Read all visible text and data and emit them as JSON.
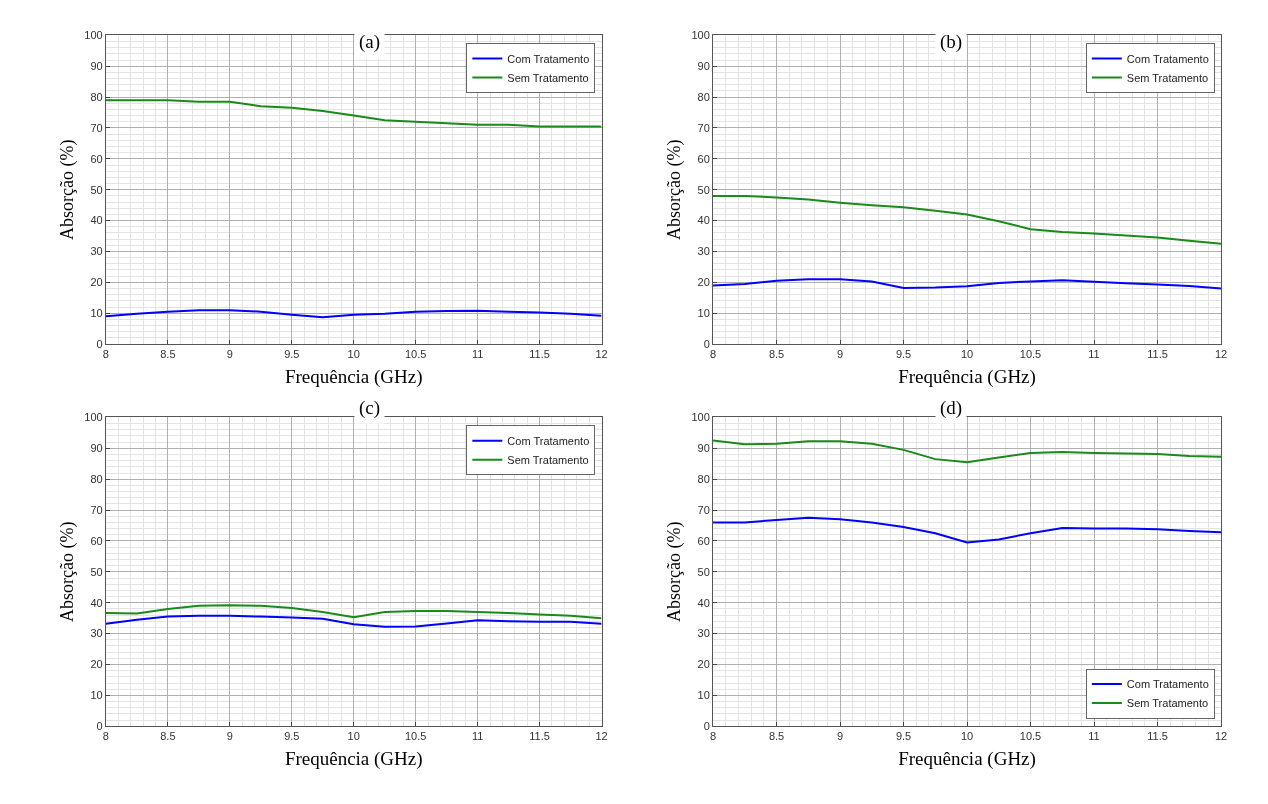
{
  "chart_data": [
    {
      "type": "line",
      "title": "(a)",
      "xlabel": "Frequência (GHz)",
      "ylabel": "Absorção (%)",
      "x": [
        8,
        8.25,
        8.5,
        8.75,
        9,
        9.25,
        9.5,
        9.75,
        10,
        10.25,
        10.5,
        10.75,
        11,
        11.25,
        11.5,
        11.75,
        12
      ],
      "series": [
        {
          "name": "Com Tratamento",
          "color": "#0000ff",
          "values": [
            9,
            9.8,
            10.5,
            11,
            11,
            10.5,
            9.5,
            8.7,
            9.5,
            9.8,
            10.5,
            10.7,
            10.8,
            10.5,
            10.2,
            9.8,
            9.2
          ]
        },
        {
          "name": "Sem Tratamento",
          "color": "#1a8a1a",
          "values": [
            79,
            79,
            79,
            78.5,
            78.5,
            77,
            76.5,
            75.5,
            74,
            72.5,
            72,
            71.5,
            71,
            71,
            70.5,
            70.5,
            70.5
          ]
        }
      ],
      "xlim": [
        8,
        12
      ],
      "ylim": [
        0,
        100
      ],
      "xticks": [
        8,
        8.5,
        9,
        9.5,
        10,
        10.5,
        11,
        11.5,
        12
      ],
      "yticks": [
        0,
        10,
        20,
        30,
        40,
        50,
        60,
        70,
        80,
        90,
        100
      ],
      "grid": true,
      "legend": "top right"
    },
    {
      "type": "line",
      "title": "(b)",
      "xlabel": "Frequência (GHz)",
      "ylabel": "Absorção (%)",
      "x": [
        8,
        8.25,
        8.5,
        8.75,
        9,
        9.25,
        9.5,
        9.75,
        10,
        10.25,
        10.5,
        10.75,
        11,
        11.25,
        11.5,
        11.75,
        12
      ],
      "series": [
        {
          "name": "Com Tratamento",
          "color": "#0000ff",
          "values": [
            19,
            19.5,
            20.5,
            21,
            21,
            20.3,
            18.2,
            18.3,
            18.7,
            19.8,
            20.3,
            20.7,
            20.2,
            19.7,
            19.3,
            18.8,
            18
          ]
        },
        {
          "name": "Sem Tratamento",
          "color": "#1a8a1a",
          "values": [
            48,
            48,
            47.5,
            46.8,
            45.8,
            45,
            44.3,
            43.2,
            42,
            39.8,
            37.2,
            36.3,
            35.8,
            35.2,
            34.5,
            33.5,
            32.5
          ]
        }
      ],
      "xlim": [
        8,
        12
      ],
      "ylim": [
        0,
        100
      ],
      "xticks": [
        8,
        8.5,
        9,
        9.5,
        10,
        10.5,
        11,
        11.5,
        12
      ],
      "yticks": [
        0,
        10,
        20,
        30,
        40,
        50,
        60,
        70,
        80,
        90,
        100
      ],
      "grid": true,
      "legend": "top right"
    },
    {
      "type": "line",
      "title": "(c)",
      "xlabel": "Frequência (GHz)",
      "ylabel": "Absorção (%)",
      "x": [
        8,
        8.25,
        8.5,
        8.75,
        9,
        9.25,
        9.5,
        9.75,
        10,
        10.25,
        10.5,
        10.75,
        11,
        11.25,
        11.5,
        11.75,
        12
      ],
      "series": [
        {
          "name": "Com Tratamento",
          "color": "#0000ff",
          "values": [
            33.2,
            34.5,
            35.5,
            35.8,
            35.8,
            35.5,
            35.2,
            34.8,
            33,
            32.2,
            32.3,
            33.3,
            34.3,
            34,
            33.8,
            33.8,
            33.2
          ]
        },
        {
          "name": "Sem Tratamento",
          "color": "#1a8a1a",
          "values": [
            36.7,
            36.5,
            38,
            39,
            39.2,
            39,
            38.3,
            37,
            35.3,
            37,
            37.3,
            37.3,
            37,
            36.7,
            36.2,
            35.8,
            35
          ]
        }
      ],
      "xlim": [
        8,
        12
      ],
      "ylim": [
        0,
        100
      ],
      "xticks": [
        8,
        8.5,
        9,
        9.5,
        10,
        10.5,
        11,
        11.5,
        12
      ],
      "yticks": [
        0,
        10,
        20,
        30,
        40,
        50,
        60,
        70,
        80,
        90,
        100
      ],
      "grid": true,
      "legend": "top right"
    },
    {
      "type": "line",
      "title": "(d)",
      "xlabel": "Frequência (GHz)",
      "ylabel": "Absorção (%)",
      "x": [
        8,
        8.25,
        8.5,
        8.75,
        9,
        9.25,
        9.5,
        9.75,
        10,
        10.25,
        10.5,
        10.75,
        11,
        11.25,
        11.5,
        11.75,
        12
      ],
      "series": [
        {
          "name": "Com Tratamento",
          "color": "#0000ff",
          "values": [
            66,
            66,
            66.8,
            67.5,
            67,
            66,
            64.5,
            62.5,
            59.5,
            60.5,
            62.5,
            64.2,
            64,
            64,
            63.8,
            63.2,
            62.8
          ]
        },
        {
          "name": "Sem Tratamento",
          "color": "#1a8a1a",
          "values": [
            92.5,
            91.3,
            91.5,
            92.3,
            92.3,
            91.5,
            89.5,
            86.5,
            85.5,
            87,
            88.5,
            88.8,
            88.5,
            88.3,
            88.2,
            87.5,
            87.3
          ]
        }
      ],
      "xlim": [
        8,
        12
      ],
      "ylim": [
        0,
        100
      ],
      "xticks": [
        8,
        8.5,
        9,
        9.5,
        10,
        10.5,
        11,
        11.5,
        12
      ],
      "yticks": [
        0,
        10,
        20,
        30,
        40,
        50,
        60,
        70,
        80,
        90,
        100
      ],
      "grid": true,
      "legend": "bottom right"
    }
  ]
}
